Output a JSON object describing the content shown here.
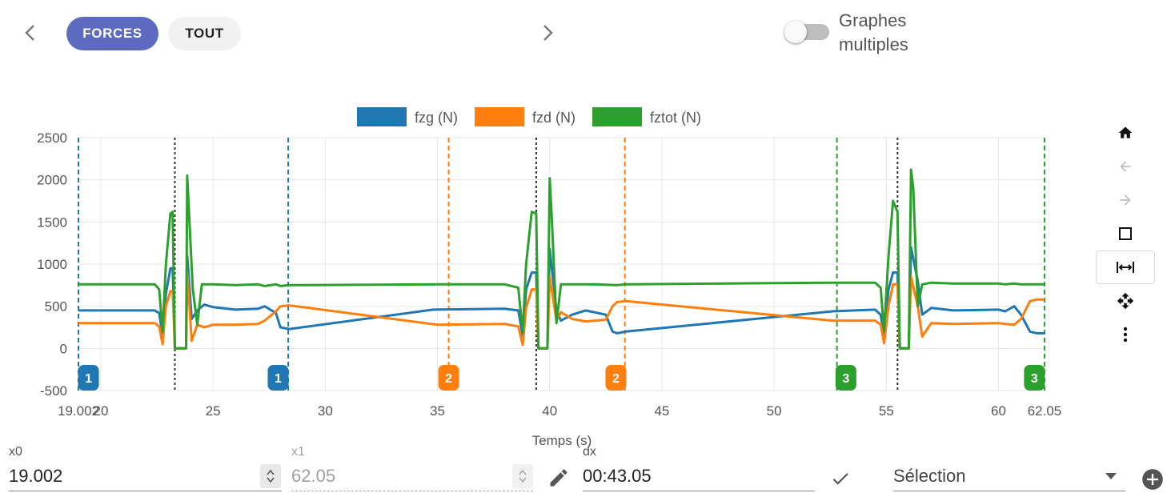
{
  "nav": {
    "prev_icon": "chevron-left-icon",
    "next_icon": "chevron-right-icon",
    "tabs": [
      {
        "label": "FORCES",
        "active": true
      },
      {
        "label": "TOUT",
        "active": false
      }
    ]
  },
  "toggle": {
    "label_line1": "Graphes",
    "label_line2": "multiples",
    "on": false
  },
  "toolbar": {
    "icons": [
      "home-icon",
      "undo-arrow-icon",
      "redo-arrow-icon",
      "box-zoom-icon",
      "horizontal-zoom-icon",
      "pan-icon",
      "more-vert-icon"
    ],
    "active": "horizontal-zoom-icon"
  },
  "chart_data": {
    "type": "line",
    "xlabel": "Temps (s)",
    "ylabel": "",
    "xlim": [
      19.002,
      62.05
    ],
    "ylim": [
      -500,
      2500
    ],
    "xticks": [
      "19.002",
      "20",
      "25",
      "30",
      "35",
      "40",
      "45",
      "50",
      "55",
      "60",
      "62.05"
    ],
    "yticks": [
      "2500",
      "2000",
      "1500",
      "1000",
      "500",
      "0",
      "-500"
    ],
    "grid": true,
    "legend_position": "top",
    "series": [
      {
        "name": "fzg (N)",
        "color": "#1f77b4",
        "x": [
          19.0,
          22.4,
          22.6,
          22.75,
          22.9,
          23.1,
          23.2,
          23.3,
          23.8,
          23.85,
          24.05,
          24.3,
          24.6,
          25.0,
          26.0,
          27.0,
          27.3,
          27.8,
          28.0,
          28.4,
          34.8,
          38.0,
          38.6,
          38.8,
          38.95,
          39.2,
          39.4,
          39.5,
          39.9,
          40.0,
          40.3,
          40.5,
          41.0,
          41.6,
          42.5,
          42.8,
          43.0,
          43.4,
          52.6,
          54.5,
          54.75,
          54.9,
          55.1,
          55.3,
          55.5,
          55.6,
          56.0,
          56.1,
          56.4,
          56.6,
          57.0,
          58.0,
          60.0,
          60.3,
          60.7,
          61.0,
          61.4,
          61.7,
          62.05
        ],
        "y": [
          450,
          450,
          420,
          150,
          650,
          950,
          950,
          0,
          0,
          1100,
          350,
          450,
          520,
          490,
          460,
          470,
          500,
          420,
          250,
          230,
          460,
          470,
          450,
          150,
          700,
          900,
          900,
          0,
          0,
          1180,
          450,
          330,
          400,
          450,
          400,
          200,
          180,
          200,
          440,
          460,
          400,
          150,
          700,
          900,
          900,
          0,
          0,
          1200,
          800,
          400,
          480,
          450,
          460,
          440,
          500,
          400,
          200,
          180,
          180
        ]
      },
      {
        "name": "fzd (N)",
        "color": "#ff7f0e",
        "x": [
          19.0,
          22.4,
          22.6,
          22.75,
          22.9,
          23.1,
          23.2,
          23.3,
          23.8,
          23.85,
          24.05,
          24.3,
          24.6,
          25.0,
          26.0,
          27.0,
          27.3,
          27.8,
          28.0,
          28.4,
          35.0,
          38.0,
          38.6,
          38.8,
          38.95,
          39.2,
          39.4,
          39.5,
          39.9,
          40.0,
          40.3,
          40.5,
          41.0,
          41.6,
          42.5,
          42.8,
          43.0,
          43.4,
          52.6,
          54.5,
          54.75,
          54.9,
          55.1,
          55.3,
          55.5,
          55.6,
          56.0,
          56.1,
          56.4,
          56.6,
          57.0,
          58.0,
          60.0,
          60.3,
          60.7,
          61.0,
          61.4,
          61.7,
          62.05
        ],
        "y": [
          300,
          300,
          260,
          50,
          500,
          680,
          680,
          0,
          0,
          900,
          90,
          280,
          250,
          280,
          280,
          290,
          330,
          440,
          500,
          510,
          280,
          290,
          260,
          40,
          480,
          700,
          700,
          0,
          0,
          850,
          330,
          430,
          350,
          320,
          340,
          500,
          550,
          560,
          330,
          330,
          280,
          60,
          500,
          760,
          760,
          0,
          0,
          850,
          500,
          140,
          300,
          290,
          300,
          290,
          280,
          350,
          560,
          580,
          580
        ]
      },
      {
        "name": "fztot (N)",
        "color": "#2ca02c",
        "x": [
          19.0,
          22.4,
          22.6,
          22.75,
          22.9,
          23.1,
          23.2,
          23.3,
          23.8,
          23.85,
          23.95,
          24.1,
          24.3,
          24.5,
          25.0,
          26.0,
          27.0,
          27.3,
          27.8,
          28.0,
          28.4,
          35.0,
          38.0,
          38.6,
          38.8,
          38.95,
          39.2,
          39.4,
          39.5,
          39.9,
          40.0,
          40.1,
          40.3,
          40.5,
          41.0,
          42.0,
          43.0,
          43.4,
          52.6,
          54.5,
          54.75,
          54.9,
          55.1,
          55.3,
          55.5,
          55.6,
          56.0,
          56.1,
          56.2,
          56.4,
          56.6,
          57.0,
          58.0,
          60.0,
          60.3,
          60.7,
          61.0,
          61.4,
          61.7,
          62.05
        ],
        "y": [
          760,
          760,
          700,
          200,
          1000,
          1600,
          1620,
          0,
          0,
          2050,
          1500,
          700,
          280,
          760,
          760,
          750,
          760,
          740,
          760,
          740,
          750,
          760,
          760,
          720,
          190,
          1000,
          1620,
          1600,
          0,
          0,
          2020,
          1500,
          300,
          760,
          760,
          760,
          750,
          760,
          780,
          780,
          720,
          200,
          1100,
          1750,
          1620,
          0,
          0,
          2120,
          1900,
          500,
          760,
          780,
          770,
          770,
          760,
          770,
          760,
          760,
          760,
          760
        ]
      }
    ],
    "vlines": [
      {
        "x": 19.002,
        "color": "#1f77b4",
        "dash": "dashed"
      },
      {
        "x": 23.3,
        "color": "#333333",
        "dash": "dotted"
      },
      {
        "x": 28.35,
        "color": "#1f77b4",
        "dash": "dashed"
      },
      {
        "x": 35.5,
        "color": "#ff7f0e",
        "dash": "dashed"
      },
      {
        "x": 39.4,
        "color": "#333333",
        "dash": "dotted"
      },
      {
        "x": 43.35,
        "color": "#ff7f0e",
        "dash": "dashed"
      },
      {
        "x": 52.8,
        "color": "#2ca02c",
        "dash": "dashed"
      },
      {
        "x": 55.5,
        "color": "#333333",
        "dash": "dotted"
      },
      {
        "x": 62.05,
        "color": "#2ca02c",
        "dash": "dashed"
      }
    ],
    "markers": [
      {
        "label": "1",
        "x": 19.45,
        "color": "#1f77b4"
      },
      {
        "label": "1",
        "x": 27.9,
        "color": "#1f77b4"
      },
      {
        "label": "2",
        "x": 35.5,
        "color": "#ff7f0e"
      },
      {
        "label": "2",
        "x": 42.95,
        "color": "#ff7f0e"
      },
      {
        "label": "3",
        "x": 53.2,
        "color": "#2ca02c"
      },
      {
        "label": "3",
        "x": 61.6,
        "color": "#2ca02c"
      }
    ]
  },
  "range": {
    "x0_label": "x0",
    "x0_value": "19.002",
    "x1_label": "x1",
    "x1_value": "62.05",
    "dx_label": "dx",
    "dx_value": "00:43.05",
    "selection_value": "Sélection"
  }
}
